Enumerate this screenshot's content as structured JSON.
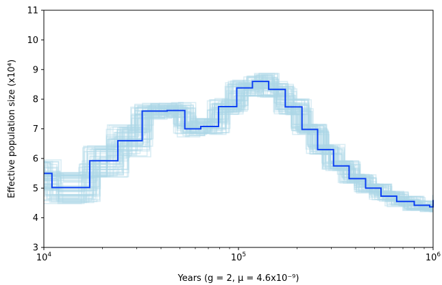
{
  "chart_data": {
    "type": "line",
    "xscale": "log",
    "xlim": [
      10000,
      1000000
    ],
    "ylim": [
      3,
      11
    ],
    "xlabel": "Years (g = 2, μ = 4.6x10⁻⁹)",
    "ylabel": "Effective population size (x10⁴)",
    "x_ticks": [
      {
        "value": 10000,
        "base": "10",
        "exp": "4"
      },
      {
        "value": 100000,
        "base": "10",
        "exp": "5"
      },
      {
        "value": 1000000,
        "base": "10",
        "exp": "6"
      }
    ],
    "y_ticks": [
      3,
      4,
      5,
      6,
      7,
      8,
      9,
      10,
      11
    ],
    "grid": false,
    "series": [
      {
        "color": "#0b3ff2",
        "style": "step",
        "x": [
          10000,
          11000,
          17200,
          24000,
          32000,
          43000,
          53000,
          64000,
          79000,
          98000,
          118000,
          143000,
          174000,
          212000,
          255000,
          308000,
          370000,
          450000,
          540000,
          650000,
          800000,
          960000,
          1000000
        ],
        "y": [
          5.5,
          5.02,
          5.92,
          6.6,
          7.6,
          7.62,
          7.0,
          7.08,
          7.75,
          8.38,
          8.6,
          8.33,
          7.74,
          6.98,
          6.3,
          5.75,
          5.32,
          5.0,
          4.73,
          4.55,
          4.42,
          4.37,
          4.6
        ]
      },
      {
        "color": "#add8e6",
        "style": "bootstrap-band",
        "description_count": 60
      }
    ]
  }
}
